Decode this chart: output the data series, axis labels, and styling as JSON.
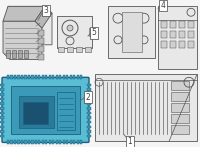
{
  "bg": "#f5f5f5",
  "white": "#ffffff",
  "gray_fill": "#e8e8e8",
  "gray_dark": "#d0d0d0",
  "gray_med": "#c0c0c0",
  "gray_line": "#888888",
  "dark_line": "#555555",
  "blue_fill": "#5bbdd4",
  "blue_dark": "#3a9ab8",
  "blue_darker": "#2a7a9a",
  "blue_edge": "#1a6080",
  "callout_color": "#444444",
  "callout_line": "#666666"
}
